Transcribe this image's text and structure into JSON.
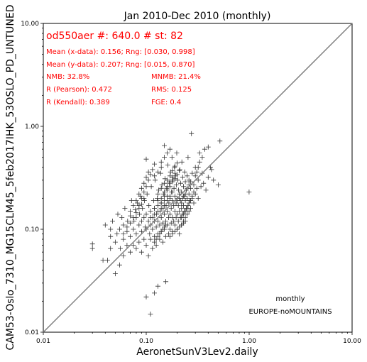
{
  "chart_data": {
    "type": "scatter",
    "title": "Jan 2010-Dec 2010 (monthly)",
    "xlabel": "AeronetSunV3Lev2.daily",
    "ylabel": "CAM53-Oslo_7310_MG15CLM45_5feb2017IHK_53OSLO_PD_UNTUNED",
    "xscale": "log",
    "yscale": "log",
    "xlim": [
      0.01,
      10.0
    ],
    "ylim": [
      0.01,
      10.0
    ],
    "xticks": [
      "0.01",
      "0.10",
      "1.00",
      "10.00"
    ],
    "yticks": [
      "0.01",
      "0.10",
      "1.00",
      "10.00"
    ],
    "reference_line": "1:1",
    "grid": false,
    "colors": {
      "points": "#333333",
      "one_to_one": "#808080",
      "stats": "#ff0000"
    },
    "stats": {
      "header": "od550aer #: 640.0 # st: 82",
      "mean_x": "Mean (x-data): 0.156; Rng: [0.030, 0.998]",
      "mean_y": "Mean (y-data): 0.207; Rng: [0.015, 0.870]",
      "nmb": "NMB: 32.8%",
      "mnmb": "MNMB: 21.4%",
      "r_pearson": "R (Pearson): 0.472",
      "rms": "RMS: 0.125",
      "r_kendall": "R (Kendall): 0.389",
      "fge": "FGE: 0.4"
    },
    "annotations": {
      "frequency": "monthly",
      "region": "EUROPE-noMOUNTAINS"
    },
    "points": [
      [
        0.03,
        0.065
      ],
      [
        0.03,
        0.072
      ],
      [
        0.038,
        0.05
      ],
      [
        0.04,
        0.11
      ],
      [
        0.042,
        0.05
      ],
      [
        0.045,
        0.065
      ],
      [
        0.045,
        0.085
      ],
      [
        0.045,
        0.1
      ],
      [
        0.047,
        0.12
      ],
      [
        0.05,
        0.037
      ],
      [
        0.05,
        0.075
      ],
      [
        0.052,
        0.09
      ],
      [
        0.053,
        0.14
      ],
      [
        0.055,
        0.045
      ],
      [
        0.055,
        0.1
      ],
      [
        0.056,
        0.065
      ],
      [
        0.058,
        0.13
      ],
      [
        0.06,
        0.055
      ],
      [
        0.06,
        0.08
      ],
      [
        0.06,
        0.11
      ],
      [
        0.062,
        0.16
      ],
      [
        0.065,
        0.07
      ],
      [
        0.065,
        0.095
      ],
      [
        0.066,
        0.12
      ],
      [
        0.07,
        0.06
      ],
      [
        0.07,
        0.085
      ],
      [
        0.07,
        0.135
      ],
      [
        0.072,
        0.19
      ],
      [
        0.075,
        0.07
      ],
      [
        0.075,
        0.1
      ],
      [
        0.076,
        0.12
      ],
      [
        0.078,
        0.155
      ],
      [
        0.08,
        0.065
      ],
      [
        0.08,
        0.09
      ],
      [
        0.08,
        0.13
      ],
      [
        0.082,
        0.18
      ],
      [
        0.085,
        0.075
      ],
      [
        0.085,
        0.11
      ],
      [
        0.086,
        0.14
      ],
      [
        0.088,
        0.21
      ],
      [
        0.09,
        0.06
      ],
      [
        0.09,
        0.095
      ],
      [
        0.09,
        0.12
      ],
      [
        0.092,
        0.16
      ],
      [
        0.095,
        0.08
      ],
      [
        0.095,
        0.13
      ],
      [
        0.096,
        0.19
      ],
      [
        0.098,
        0.105
      ],
      [
        0.1,
        0.07
      ],
      [
        0.1,
        0.1
      ],
      [
        0.1,
        0.14
      ],
      [
        0.102,
        0.22
      ],
      [
        0.1,
        0.48
      ],
      [
        0.105,
        0.055
      ],
      [
        0.105,
        0.12
      ],
      [
        0.106,
        0.17
      ],
      [
        0.108,
        0.09
      ],
      [
        0.11,
        0.08
      ],
      [
        0.11,
        0.11
      ],
      [
        0.11,
        0.15
      ],
      [
        0.112,
        0.26
      ],
      [
        0.115,
        0.065
      ],
      [
        0.115,
        0.1
      ],
      [
        0.116,
        0.13
      ],
      [
        0.118,
        0.19
      ],
      [
        0.12,
        0.085
      ],
      [
        0.12,
        0.12
      ],
      [
        0.12,
        0.16
      ],
      [
        0.122,
        0.3
      ],
      [
        0.125,
        0.07
      ],
      [
        0.125,
        0.105
      ],
      [
        0.126,
        0.14
      ],
      [
        0.128,
        0.2
      ],
      [
        0.13,
        0.09
      ],
      [
        0.13,
        0.12
      ],
      [
        0.13,
        0.17
      ],
      [
        0.132,
        0.24
      ],
      [
        0.135,
        0.08
      ],
      [
        0.135,
        0.11
      ],
      [
        0.136,
        0.15
      ],
      [
        0.138,
        0.35
      ],
      [
        0.14,
        0.095
      ],
      [
        0.14,
        0.13
      ],
      [
        0.14,
        0.18
      ],
      [
        0.142,
        0.27
      ],
      [
        0.145,
        0.075
      ],
      [
        0.145,
        0.115
      ],
      [
        0.146,
        0.16
      ],
      [
        0.148,
        0.22
      ],
      [
        0.15,
        0.1
      ],
      [
        0.15,
        0.14
      ],
      [
        0.15,
        0.19
      ],
      [
        0.152,
        0.31
      ],
      [
        0.155,
        0.085
      ],
      [
        0.155,
        0.12
      ],
      [
        0.156,
        0.17
      ],
      [
        0.158,
        0.25
      ],
      [
        0.16,
        0.11
      ],
      [
        0.16,
        0.15
      ],
      [
        0.16,
        0.21
      ],
      [
        0.162,
        0.42
      ],
      [
        0.165,
        0.09
      ],
      [
        0.165,
        0.13
      ],
      [
        0.166,
        0.18
      ],
      [
        0.168,
        0.28
      ],
      [
        0.17,
        0.1
      ],
      [
        0.17,
        0.14
      ],
      [
        0.17,
        0.2
      ],
      [
        0.172,
        0.36
      ],
      [
        0.175,
        0.115
      ],
      [
        0.175,
        0.16
      ],
      [
        0.176,
        0.23
      ],
      [
        0.178,
        0.5
      ],
      [
        0.18,
        0.095
      ],
      [
        0.18,
        0.13
      ],
      [
        0.18,
        0.19
      ],
      [
        0.182,
        0.3
      ],
      [
        0.185,
        0.12
      ],
      [
        0.185,
        0.17
      ],
      [
        0.186,
        0.25
      ],
      [
        0.188,
        0.4
      ],
      [
        0.19,
        0.11
      ],
      [
        0.19,
        0.15
      ],
      [
        0.19,
        0.21
      ],
      [
        0.192,
        0.33
      ],
      [
        0.195,
        0.13
      ],
      [
        0.195,
        0.18
      ],
      [
        0.196,
        0.27
      ],
      [
        0.198,
        0.55
      ],
      [
        0.2,
        0.1
      ],
      [
        0.2,
        0.14
      ],
      [
        0.2,
        0.2
      ],
      [
        0.202,
        0.3
      ],
      [
        0.205,
        0.12
      ],
      [
        0.205,
        0.17
      ],
      [
        0.206,
        0.24
      ],
      [
        0.21,
        0.09
      ],
      [
        0.21,
        0.15
      ],
      [
        0.21,
        0.22
      ],
      [
        0.212,
        0.38
      ],
      [
        0.215,
        0.13
      ],
      [
        0.215,
        0.19
      ],
      [
        0.216,
        0.28
      ],
      [
        0.22,
        0.11
      ],
      [
        0.22,
        0.16
      ],
      [
        0.22,
        0.23
      ],
      [
        0.222,
        0.45
      ],
      [
        0.225,
        0.14
      ],
      [
        0.225,
        0.2
      ],
      [
        0.226,
        0.32
      ],
      [
        0.23,
        0.12
      ],
      [
        0.23,
        0.17
      ],
      [
        0.23,
        0.26
      ],
      [
        0.235,
        0.15
      ],
      [
        0.235,
        0.21
      ],
      [
        0.236,
        0.36
      ],
      [
        0.24,
        0.13
      ],
      [
        0.24,
        0.19
      ],
      [
        0.24,
        0.29
      ],
      [
        0.245,
        0.16
      ],
      [
        0.245,
        0.24
      ],
      [
        0.25,
        0.14
      ],
      [
        0.25,
        0.2
      ],
      [
        0.25,
        0.33
      ],
      [
        0.255,
        0.17
      ],
      [
        0.255,
        0.5
      ],
      [
        0.26,
        0.15
      ],
      [
        0.26,
        0.22
      ],
      [
        0.26,
        0.3
      ],
      [
        0.265,
        0.19
      ],
      [
        0.27,
        0.16
      ],
      [
        0.27,
        0.25
      ],
      [
        0.275,
        0.85
      ],
      [
        0.28,
        0.2
      ],
      [
        0.28,
        0.35
      ],
      [
        0.29,
        0.18
      ],
      [
        0.29,
        0.27
      ],
      [
        0.3,
        0.22
      ],
      [
        0.3,
        0.4
      ],
      [
        0.31,
        0.25
      ],
      [
        0.32,
        0.2
      ],
      [
        0.32,
        0.3
      ],
      [
        0.33,
        0.55
      ],
      [
        0.34,
        0.26
      ],
      [
        0.35,
        0.35
      ],
      [
        0.36,
        0.28
      ],
      [
        0.38,
        0.24
      ],
      [
        0.4,
        0.32
      ],
      [
        0.42,
        0.4
      ],
      [
        0.45,
        0.3
      ],
      [
        0.5,
        0.27
      ],
      [
        0.52,
        0.72
      ],
      [
        0.998,
        0.23
      ],
      [
        0.11,
        0.015
      ],
      [
        0.13,
        0.028
      ],
      [
        0.155,
        0.031
      ],
      [
        0.1,
        0.022
      ],
      [
        0.12,
        0.024
      ],
      [
        0.14,
        0.18
      ],
      [
        0.15,
        0.21
      ],
      [
        0.16,
        0.24
      ],
      [
        0.17,
        0.26
      ],
      [
        0.18,
        0.29
      ],
      [
        0.19,
        0.31
      ],
      [
        0.2,
        0.34
      ],
      [
        0.21,
        0.37
      ],
      [
        0.13,
        0.22
      ],
      [
        0.14,
        0.25
      ],
      [
        0.15,
        0.28
      ],
      [
        0.16,
        0.3
      ],
      [
        0.17,
        0.33
      ],
      [
        0.18,
        0.37
      ],
      [
        0.19,
        0.41
      ],
      [
        0.2,
        0.44
      ],
      [
        0.12,
        0.16
      ],
      [
        0.13,
        0.19
      ],
      [
        0.14,
        0.2
      ],
      [
        0.15,
        0.23
      ],
      [
        0.16,
        0.26
      ],
      [
        0.17,
        0.29
      ],
      [
        0.18,
        0.32
      ],
      [
        0.19,
        0.35
      ],
      [
        0.11,
        0.13
      ],
      [
        0.12,
        0.14
      ],
      [
        0.13,
        0.15
      ],
      [
        0.14,
        0.16
      ],
      [
        0.15,
        0.17
      ],
      [
        0.16,
        0.19
      ],
      [
        0.17,
        0.21
      ],
      [
        0.18,
        0.23
      ],
      [
        0.2,
        0.19
      ],
      [
        0.21,
        0.2
      ],
      [
        0.22,
        0.18
      ],
      [
        0.23,
        0.21
      ],
      [
        0.24,
        0.22
      ],
      [
        0.25,
        0.25
      ],
      [
        0.26,
        0.27
      ],
      [
        0.27,
        0.29
      ],
      [
        0.085,
        0.17
      ],
      [
        0.09,
        0.2
      ],
      [
        0.095,
        0.23
      ],
      [
        0.1,
        0.26
      ],
      [
        0.105,
        0.3
      ],
      [
        0.11,
        0.34
      ],
      [
        0.115,
        0.38
      ],
      [
        0.12,
        0.43
      ],
      [
        0.07,
        0.15
      ],
      [
        0.075,
        0.17
      ],
      [
        0.08,
        0.19
      ],
      [
        0.085,
        0.22
      ],
      [
        0.09,
        0.25
      ],
      [
        0.095,
        0.28
      ],
      [
        0.1,
        0.32
      ],
      [
        0.105,
        0.36
      ],
      [
        0.06,
        0.09
      ],
      [
        0.065,
        0.105
      ],
      [
        0.07,
        0.115
      ],
      [
        0.075,
        0.13
      ],
      [
        0.08,
        0.145
      ],
      [
        0.085,
        0.16
      ],
      [
        0.09,
        0.175
      ],
      [
        0.095,
        0.2
      ],
      [
        0.22,
        0.13
      ],
      [
        0.23,
        0.14
      ],
      [
        0.24,
        0.15
      ],
      [
        0.25,
        0.16
      ],
      [
        0.26,
        0.18
      ],
      [
        0.27,
        0.19
      ],
      [
        0.28,
        0.21
      ],
      [
        0.29,
        0.23
      ],
      [
        0.17,
        0.085
      ],
      [
        0.18,
        0.09
      ],
      [
        0.19,
        0.095
      ],
      [
        0.2,
        0.1
      ],
      [
        0.21,
        0.105
      ],
      [
        0.22,
        0.11
      ],
      [
        0.23,
        0.115
      ],
      [
        0.24,
        0.12
      ],
      [
        0.12,
        0.075
      ],
      [
        0.125,
        0.08
      ],
      [
        0.13,
        0.085
      ],
      [
        0.135,
        0.09
      ],
      [
        0.14,
        0.095
      ],
      [
        0.145,
        0.1
      ],
      [
        0.15,
        0.105
      ],
      [
        0.155,
        0.11
      ],
      [
        0.3,
        0.33
      ],
      [
        0.31,
        0.36
      ],
      [
        0.32,
        0.4
      ],
      [
        0.33,
        0.45
      ],
      [
        0.35,
        0.5
      ],
      [
        0.37,
        0.6
      ],
      [
        0.4,
        0.63
      ],
      [
        0.43,
        0.38
      ],
      [
        0.14,
        0.45
      ],
      [
        0.15,
        0.5
      ],
      [
        0.16,
        0.55
      ],
      [
        0.17,
        0.6
      ],
      [
        0.15,
        0.65
      ],
      [
        0.14,
        0.4
      ],
      [
        0.13,
        0.36
      ],
      [
        0.12,
        0.33
      ]
    ]
  }
}
